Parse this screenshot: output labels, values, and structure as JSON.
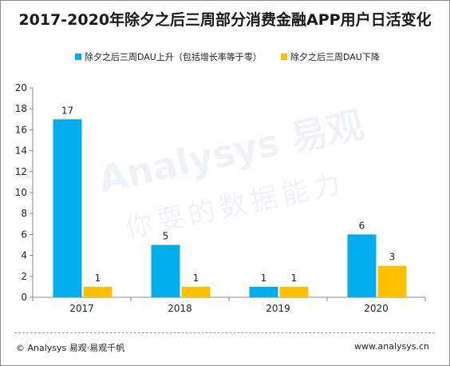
{
  "title": "2017-2020年除夕之后三周部分消费金融APP用户日活变化",
  "colors": {
    "series_up": "#00aeef",
    "series_down": "#ffc000",
    "axis": "#888888"
  },
  "watermark": {
    "main": "Analysys 易观",
    "sub": "你要的数据能力"
  },
  "footer": {
    "left": "© Analysys 易观·易观千帆",
    "right": "www.analysys.cn"
  },
  "chart_data": {
    "type": "bar",
    "categories": [
      "2017",
      "2018",
      "2019",
      "2020"
    ],
    "series": [
      {
        "name": "除夕之后三周DAU上升（包括增长率等于零）",
        "values": [
          17,
          5,
          1,
          6
        ]
      },
      {
        "name": "除夕之后三周DAU下降",
        "values": [
          1,
          1,
          1,
          3
        ]
      }
    ],
    "ylim": [
      0,
      20
    ],
    "yticks": [
      0,
      2,
      4,
      6,
      8,
      10,
      12,
      14,
      16,
      18,
      20
    ],
    "legend": "top",
    "grid": false
  }
}
